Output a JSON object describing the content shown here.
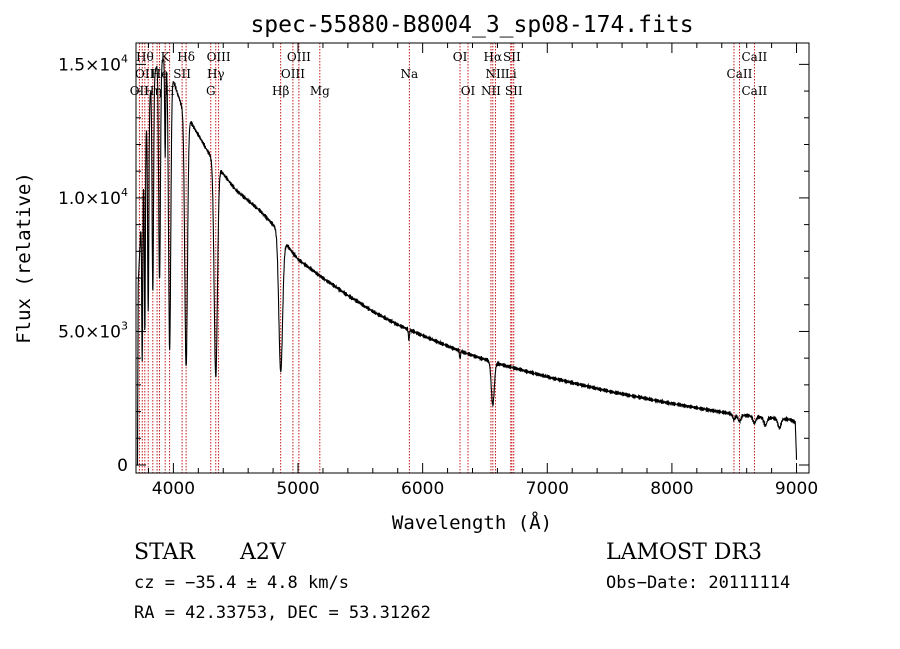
{
  "chart_data": {
    "type": "line",
    "title": "spec-55880-B8004_3_sp08-174.fits",
    "xlabel": "Wavelength (Å)",
    "ylabel": "Flux (relative)",
    "xlim": [
      3700,
      9100
    ],
    "ylim": [
      -300,
      15800
    ],
    "xticks": [
      4000,
      5000,
      6000,
      7000,
      8000,
      9000
    ],
    "xtick_labels": [
      "4000",
      "5000",
      "6000",
      "7000",
      "8000",
      "9000"
    ],
    "yticks": [
      {
        "value": 0,
        "mantissa": "0",
        "exponent": ""
      },
      {
        "value": 5000,
        "mantissa": "5.0×10",
        "exponent": "3"
      },
      {
        "value": 10000,
        "mantissa": "1.0×10",
        "exponent": "4"
      },
      {
        "value": 15000,
        "mantissa": "1.5×10",
        "exponent": "4"
      }
    ],
    "continuum": [
      [
        3712,
        0
      ],
      [
        3718,
        6800
      ],
      [
        3740,
        9000
      ],
      [
        3780,
        12500
      ],
      [
        3820,
        14200
      ],
      [
        3870,
        15000
      ],
      [
        3920,
        15200
      ],
      [
        3970,
        14800
      ],
      [
        4020,
        14100
      ],
      [
        4070,
        13400
      ],
      [
        4120,
        13000
      ],
      [
        4170,
        12600
      ],
      [
        4220,
        12200
      ],
      [
        4280,
        11700
      ],
      [
        4340,
        11300
      ],
      [
        4400,
        10900
      ],
      [
        4500,
        10300
      ],
      [
        4600,
        9900
      ],
      [
        4700,
        9500
      ],
      [
        4800,
        9000
      ],
      [
        4860,
        8700
      ],
      [
        4900,
        8300
      ],
      [
        5000,
        7700
      ],
      [
        5100,
        7350
      ],
      [
        5200,
        7000
      ],
      [
        5400,
        6350
      ],
      [
        5600,
        5750
      ],
      [
        5800,
        5250
      ],
      [
        6000,
        4850
      ],
      [
        6200,
        4450
      ],
      [
        6400,
        4100
      ],
      [
        6600,
        3800
      ],
      [
        6800,
        3550
      ],
      [
        7000,
        3300
      ],
      [
        7500,
        2750
      ],
      [
        8000,
        2300
      ],
      [
        8500,
        1900
      ],
      [
        8800,
        1750
      ],
      [
        8950,
        1700
      ],
      [
        8990,
        1600
      ],
      [
        9000,
        200
      ]
    ],
    "absorption_lines": [
      {
        "center": 3750,
        "depth": 6000,
        "width": 4
      },
      {
        "center": 3771,
        "depth": 6800,
        "width": 4
      },
      {
        "center": 3798,
        "depth": 7500,
        "width": 5
      },
      {
        "center": 3835,
        "depth": 8000,
        "width": 6
      },
      {
        "center": 3889,
        "depth": 8200,
        "width": 7
      },
      {
        "center": 3934,
        "depth": 3500,
        "width": 4
      },
      {
        "center": 3970,
        "depth": 10500,
        "width": 9
      },
      {
        "center": 4102,
        "depth": 9500,
        "width": 11
      },
      {
        "center": 4340,
        "depth": 8000,
        "width": 13
      },
      {
        "center": 4861,
        "depth": 5200,
        "width": 15
      },
      {
        "center": 5890,
        "depth": 400,
        "width": 4
      },
      {
        "center": 6300,
        "depth": 300,
        "width": 4
      },
      {
        "center": 6563,
        "depth": 1600,
        "width": 12
      },
      {
        "center": 8498,
        "depth": 200,
        "width": 10
      },
      {
        "center": 8542,
        "depth": 250,
        "width": 12
      },
      {
        "center": 8662,
        "depth": 250,
        "width": 12
      },
      {
        "center": 8750,
        "depth": 300,
        "width": 12
      },
      {
        "center": 8863,
        "depth": 350,
        "width": 12
      }
    ],
    "marker_lines": [
      3727,
      3750,
      3771,
      3798,
      3835,
      3869,
      3889,
      3934,
      3970,
      4070,
      4102,
      4300,
      4340,
      4363,
      4861,
      4959,
      5007,
      5175,
      5893,
      6300,
      6364,
      6548,
      6563,
      6584,
      6707,
      6716,
      6731,
      8498,
      8542,
      8662
    ],
    "line_labels": [
      {
        "text": "Hθ",
        "x": 3771,
        "row": 1
      },
      {
        "text": "K",
        "x": 3934,
        "row": 1
      },
      {
        "text": "Hδ",
        "x": 4102,
        "row": 1
      },
      {
        "text": "OIII",
        "x": 4363,
        "row": 1
      },
      {
        "text": "OIII",
        "x": 5007,
        "row": 1
      },
      {
        "text": "OI",
        "x": 6300,
        "row": 1
      },
      {
        "text": "Hα",
        "x": 6563,
        "row": 1
      },
      {
        "text": "SII",
        "x": 6716,
        "row": 1
      },
      {
        "text": "CaII",
        "x": 8662,
        "row": 1
      },
      {
        "text": "OII",
        "x": 3770,
        "row": 2
      },
      {
        "text": "He",
        "x": 3889,
        "row": 2
      },
      {
        "text": "SII",
        "x": 4070,
        "row": 2
      },
      {
        "text": "Hγ",
        "x": 4340,
        "row": 2
      },
      {
        "text": "OIII",
        "x": 4959,
        "row": 2
      },
      {
        "text": "Na",
        "x": 5893,
        "row": 2
      },
      {
        "text": "NII",
        "x": 6584,
        "row": 2
      },
      {
        "text": "Li",
        "x": 6707,
        "row": 2
      },
      {
        "text": "CaII",
        "x": 8542,
        "row": 2
      },
      {
        "text": "OII",
        "x": 3727,
        "row": 3
      },
      {
        "text": "Hη",
        "x": 3835,
        "row": 3
      },
      {
        "text": "H",
        "x": 3970,
        "row": 3
      },
      {
        "text": "G",
        "x": 4300,
        "row": 3
      },
      {
        "text": "Hβ",
        "x": 4861,
        "row": 3
      },
      {
        "text": "Mg",
        "x": 5175,
        "row": 3
      },
      {
        "text": "OI",
        "x": 6364,
        "row": 3
      },
      {
        "text": "NII",
        "x": 6548,
        "row": 3
      },
      {
        "text": "SII",
        "x": 6731,
        "row": 3
      },
      {
        "text": "CaII",
        "x": 8662,
        "row": 3
      }
    ]
  },
  "info": {
    "obj_class": "STAR",
    "subclass": "A2V",
    "survey": "LAMOST DR3",
    "cz": "cz = −35.4 ± 4.8 km/s",
    "obs_date": "Obs−Date: 20111114",
    "coords": "RA =  42.33753, DEC =  53.31262"
  }
}
